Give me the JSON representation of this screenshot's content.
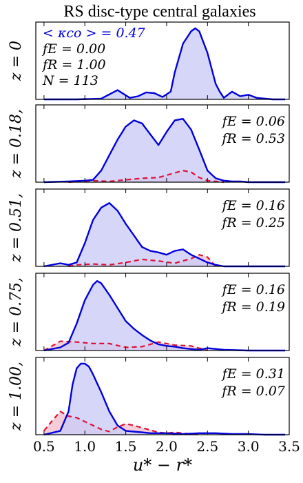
{
  "chart_data": {
    "type": "area",
    "title": "RS disc-type central galaxies",
    "xlabel": "u* − r*",
    "xlim": [
      0.4,
      3.5
    ],
    "xticks": [
      "0.5",
      "1.0",
      "1.5",
      "2.0",
      "2.5",
      "3.0",
      "3.5"
    ],
    "xtick_values": [
      0.5,
      1.0,
      1.5,
      2.0,
      2.5,
      3.0,
      3.5
    ],
    "colors": {
      "blue": "#0000dd",
      "blue_fill": "#ccccf7",
      "red": "#dd1133",
      "red_fill": "#f0b8c8"
    },
    "panels": [
      {
        "ylabel": "z = 0",
        "annotations": [
          "< κco > = 0.47",
          "fE = 0.00",
          "fR = 1.00",
          "N = 113"
        ],
        "ymax": 1.0,
        "blue": {
          "x": [
            0.5,
            0.9,
            1.2,
            1.4,
            1.55,
            1.65,
            1.75,
            1.85,
            1.95,
            2.05,
            2.1,
            2.2,
            2.3,
            2.35,
            2.4,
            2.5,
            2.6,
            2.65,
            2.7,
            2.8,
            2.9,
            3.0,
            3.1,
            3.3,
            3.45
          ],
          "y": [
            0.0,
            0.0,
            0.01,
            0.12,
            0.02,
            0.04,
            0.09,
            0.08,
            0.03,
            0.1,
            0.35,
            0.72,
            0.88,
            0.92,
            0.88,
            0.6,
            0.2,
            0.1,
            0.02,
            0.1,
            0.04,
            0.06,
            0.02,
            0.0,
            0.0
          ]
        },
        "red": {
          "x": [],
          "y": []
        }
      },
      {
        "ylabel": "z = 0.18,",
        "annotations": [
          "fE = 0.06",
          "fR = 0.53"
        ],
        "ymax": 1.0,
        "blue": {
          "x": [
            0.5,
            0.8,
            1.0,
            1.1,
            1.2,
            1.3,
            1.4,
            1.5,
            1.6,
            1.7,
            1.8,
            1.9,
            2.0,
            2.1,
            2.2,
            2.3,
            2.4,
            2.5,
            2.6,
            2.7,
            2.8,
            2.9,
            3.0,
            3.2,
            3.45
          ],
          "y": [
            0.0,
            0.01,
            0.02,
            0.03,
            0.15,
            0.35,
            0.55,
            0.72,
            0.8,
            0.76,
            0.62,
            0.48,
            0.65,
            0.8,
            0.82,
            0.68,
            0.42,
            0.15,
            0.05,
            0.02,
            0.01,
            0.01,
            0.0,
            0.0,
            0.0
          ]
        },
        "red": {
          "x": [
            0.8,
            1.1,
            1.3,
            1.5,
            1.7,
            1.9,
            2.1,
            2.2,
            2.3,
            2.4,
            2.5,
            2.6,
            2.7
          ],
          "y": [
            0.0,
            0.02,
            0.01,
            0.03,
            0.05,
            0.06,
            0.12,
            0.15,
            0.13,
            0.06,
            0.02,
            0.01,
            0.0
          ]
        }
      },
      {
        "ylabel": "z = 0.51,",
        "annotations": [
          "fE = 0.16",
          "fR = 0.25"
        ],
        "ymax": 1.0,
        "blue": {
          "x": [
            0.5,
            0.7,
            0.8,
            0.9,
            1.0,
            1.1,
            1.2,
            1.3,
            1.4,
            1.5,
            1.6,
            1.7,
            1.8,
            1.9,
            2.0,
            2.1,
            2.2,
            2.3,
            2.4,
            2.5,
            2.6,
            2.7,
            3.0,
            3.45
          ],
          "y": [
            0.0,
            0.04,
            0.02,
            0.05,
            0.3,
            0.6,
            0.76,
            0.82,
            0.72,
            0.55,
            0.4,
            0.25,
            0.2,
            0.18,
            0.15,
            0.2,
            0.22,
            0.15,
            0.1,
            0.05,
            0.02,
            0.0,
            0.0,
            0.0
          ]
        },
        "red": {
          "x": [
            0.8,
            0.9,
            1.1,
            1.3,
            1.5,
            1.7,
            1.9,
            2.1,
            2.3,
            2.4,
            2.5,
            2.6
          ],
          "y": [
            0.0,
            0.02,
            0.03,
            0.02,
            0.05,
            0.09,
            0.07,
            0.04,
            0.1,
            0.15,
            0.12,
            0.0
          ]
        }
      },
      {
        "ylabel": "z = 0.75,",
        "annotations": [
          "fE = 0.16",
          "fR = 0.19"
        ],
        "ymax": 1.0,
        "blue": {
          "x": [
            0.5,
            0.7,
            0.8,
            0.9,
            1.0,
            1.1,
            1.15,
            1.2,
            1.3,
            1.4,
            1.5,
            1.6,
            1.7,
            1.8,
            1.9,
            2.0,
            2.1,
            2.2,
            2.3,
            2.4,
            2.5,
            2.7,
            3.0,
            3.45
          ],
          "y": [
            0.0,
            0.04,
            0.1,
            0.35,
            0.65,
            0.85,
            0.9,
            0.87,
            0.72,
            0.55,
            0.38,
            0.28,
            0.2,
            0.13,
            0.08,
            0.06,
            0.05,
            0.03,
            0.02,
            0.01,
            0.03,
            0.01,
            0.0,
            0.0
          ]
        },
        "red": {
          "x": [
            0.5,
            0.7,
            0.9,
            1.1,
            1.3,
            1.5,
            1.7,
            1.9,
            2.1,
            2.3,
            2.5
          ],
          "y": [
            0.0,
            0.12,
            0.11,
            0.09,
            0.09,
            0.04,
            0.05,
            0.11,
            0.07,
            0.06,
            0.0
          ]
        }
      },
      {
        "ylabel": "z = 1.00,",
        "annotations": [
          "fE = 0.31",
          "fR = 0.07"
        ],
        "ymax": 1.0,
        "blue": {
          "x": [
            0.5,
            0.7,
            0.8,
            0.85,
            0.9,
            0.95,
            1.0,
            1.05,
            1.1,
            1.2,
            1.3,
            1.4,
            1.5,
            1.6,
            1.7,
            1.8,
            1.9,
            2.0,
            2.2,
            2.4,
            2.6,
            2.8,
            3.0,
            3.2,
            3.45
          ],
          "y": [
            0.0,
            0.05,
            0.3,
            0.65,
            0.86,
            0.92,
            0.92,
            0.88,
            0.78,
            0.55,
            0.3,
            0.12,
            0.05,
            0.04,
            0.03,
            0.02,
            0.02,
            0.02,
            0.01,
            0.02,
            0.02,
            0.01,
            0.01,
            0.0,
            0.0
          ]
        },
        "red": {
          "x": [
            0.5,
            0.6,
            0.7,
            0.8,
            0.9,
            1.0,
            1.1,
            1.2,
            1.3,
            1.4,
            1.5,
            1.6,
            1.7,
            1.8,
            1.9,
            2.0,
            2.1,
            2.2,
            2.4
          ],
          "y": [
            0.05,
            0.18,
            0.3,
            0.24,
            0.22,
            0.17,
            0.12,
            0.07,
            0.04,
            0.1,
            0.14,
            0.12,
            0.09,
            0.06,
            0.03,
            0.02,
            0.03,
            0.02,
            0.0
          ]
        }
      }
    ]
  }
}
